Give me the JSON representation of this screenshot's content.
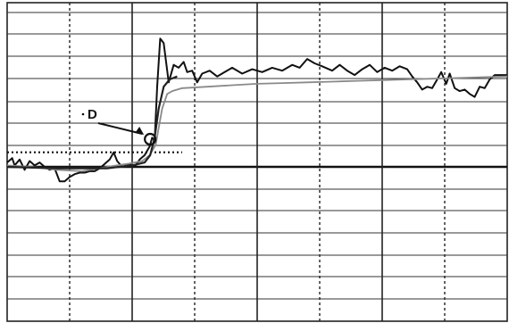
{
  "chart_data": {
    "type": "line",
    "title": "",
    "xlabel": "",
    "ylabel": "",
    "xlim": [
      0,
      100
    ],
    "ylim": [
      -100,
      100
    ],
    "grid": true,
    "reference_line": {
      "y": 10,
      "style": "dotted",
      "x_start": 0,
      "x_end": 35
    },
    "annotations": [
      {
        "label": "D",
        "marker": "circle",
        "x": 28.6,
        "y": 19,
        "arrow": true
      }
    ],
    "series": [
      {
        "style": "dark-noisy",
        "color": "#111111",
        "points": [
          [
            0,
            3
          ],
          [
            1,
            6
          ],
          [
            1.5,
            1
          ],
          [
            2.5,
            5
          ],
          [
            3.5,
            -2
          ],
          [
            4.5,
            4
          ],
          [
            5.5,
            1
          ],
          [
            6.5,
            3
          ],
          [
            7.5,
            0
          ],
          [
            8.5,
            -2
          ],
          [
            9.5,
            -1
          ],
          [
            10.5,
            -10
          ],
          [
            11.5,
            -10
          ],
          [
            12.5,
            -7
          ],
          [
            13.5,
            -5
          ],
          [
            14.5,
            -4
          ],
          [
            15.5,
            -4
          ],
          [
            16.5,
            -3
          ],
          [
            17.5,
            -3
          ],
          [
            18.5,
            -1
          ],
          [
            19.5,
            2
          ],
          [
            20.5,
            5
          ],
          [
            21.3,
            10
          ],
          [
            22,
            4
          ],
          [
            23,
            0
          ],
          [
            24.5,
            2
          ],
          [
            25.5,
            0
          ],
          [
            26.5,
            5
          ],
          [
            27.5,
            8
          ],
          [
            28.5,
            14
          ],
          [
            29,
            20
          ],
          [
            29.5,
            18
          ],
          [
            30,
            55
          ],
          [
            30.6,
            88
          ],
          [
            31.3,
            85
          ],
          [
            32.3,
            58
          ],
          [
            33.3,
            70
          ],
          [
            34.3,
            68
          ],
          [
            35.3,
            72
          ],
          [
            36,
            65
          ],
          [
            37,
            66
          ],
          [
            38,
            58
          ],
          [
            39,
            64
          ],
          [
            40.5,
            66
          ],
          [
            42,
            62
          ],
          [
            43.5,
            65
          ],
          [
            45,
            68
          ],
          [
            47,
            64
          ],
          [
            49,
            67
          ],
          [
            51,
            65
          ],
          [
            53,
            68
          ],
          [
            55,
            66
          ],
          [
            57,
            70
          ],
          [
            58.5,
            68
          ],
          [
            60,
            74
          ],
          [
            61.5,
            71
          ],
          [
            63,
            69
          ],
          [
            65,
            66
          ],
          [
            66.5,
            70
          ],
          [
            68,
            66
          ],
          [
            69.5,
            63
          ],
          [
            71,
            67
          ],
          [
            72.5,
            70
          ],
          [
            74,
            65
          ],
          [
            75.5,
            68
          ],
          [
            77,
            66
          ],
          [
            78.5,
            69
          ],
          [
            80,
            67
          ],
          [
            81,
            62
          ],
          [
            82,
            58
          ],
          [
            83,
            53
          ],
          [
            84,
            55
          ],
          [
            85,
            54
          ],
          [
            86,
            60
          ],
          [
            86.8,
            65
          ],
          [
            87.8,
            57
          ],
          [
            88.5,
            64
          ],
          [
            89.5,
            54
          ],
          [
            90.5,
            52
          ],
          [
            91.5,
            53
          ],
          [
            92.5,
            50
          ],
          [
            93.5,
            48
          ],
          [
            94.5,
            55
          ],
          [
            95.5,
            54
          ],
          [
            96.5,
            60
          ],
          [
            97.5,
            63
          ],
          [
            100,
            63
          ]
        ]
      },
      {
        "style": "gray-smooth",
        "color": "#8a8a8a",
        "points": [
          [
            0,
            1
          ],
          [
            5,
            0
          ],
          [
            10,
            -2
          ],
          [
            15,
            -3
          ],
          [
            20,
            0
          ],
          [
            24,
            2
          ],
          [
            27,
            4
          ],
          [
            28.5,
            8
          ],
          [
            29.7,
            15
          ],
          [
            31,
            40
          ],
          [
            32,
            50
          ],
          [
            33,
            52
          ],
          [
            35,
            54
          ],
          [
            40,
            55
          ],
          [
            45,
            56
          ],
          [
            50,
            57
          ],
          [
            55,
            57.5
          ],
          [
            60,
            58
          ],
          [
            65,
            58.5
          ],
          [
            70,
            59
          ],
          [
            75,
            59.5
          ],
          [
            80,
            60
          ],
          [
            85,
            60.5
          ],
          [
            90,
            61
          ],
          [
            95,
            61.5
          ],
          [
            100,
            62
          ]
        ]
      },
      {
        "style": "dark-smooth",
        "color": "#222222",
        "points": [
          [
            0,
            0
          ],
          [
            10,
            -1
          ],
          [
            20,
            -1
          ],
          [
            25,
            1
          ],
          [
            27.5,
            3
          ],
          [
            28.6,
            8
          ],
          [
            29.5,
            20
          ],
          [
            30.3,
            40
          ],
          [
            31.3,
            55
          ],
          [
            32.5,
            60
          ],
          [
            34,
            62
          ]
        ]
      }
    ]
  }
}
